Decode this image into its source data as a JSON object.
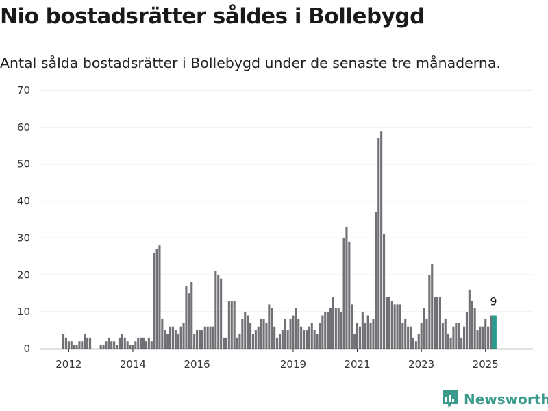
{
  "title": "Nio bostadsrätter såldes i Bollebygd",
  "subtitle": "Antal sålda bostadsrätter i Bollebygd under de senaste tre månaderna.",
  "logo_text": "Newsworthy",
  "colors": {
    "bar": "#707075",
    "highlight": "#2b9a8f",
    "logo": "#3a9a8c",
    "grid": "#dcdcdc"
  },
  "chart_data": {
    "type": "bar",
    "y_ticks": [
      0,
      10,
      20,
      30,
      40,
      50,
      60,
      70
    ],
    "ylim": [
      0,
      70
    ],
    "x_tick_labels": [
      {
        "label": "2012",
        "index": 2
      },
      {
        "label": "2014",
        "index": 26
      },
      {
        "label": "2016",
        "index": 50
      },
      {
        "label": "2019",
        "index": 86
      },
      {
        "label": "2021",
        "index": 110
      },
      {
        "label": "2023",
        "index": 134
      },
      {
        "label": "2025",
        "index": 158
      }
    ],
    "highlight_label": "9",
    "values": [
      4,
      3,
      2,
      2,
      1,
      1,
      2,
      2,
      4,
      3,
      3,
      0,
      0,
      0,
      1,
      1,
      2,
      3,
      2,
      2,
      1,
      3,
      4,
      3,
      2,
      1,
      1,
      2,
      3,
      3,
      3,
      2,
      3,
      2,
      26,
      27,
      28,
      8,
      5,
      4,
      6,
      6,
      5,
      4,
      6,
      7,
      17,
      15,
      18,
      4,
      5,
      5,
      5,
      6,
      6,
      6,
      6,
      21,
      20,
      19,
      3,
      3,
      13,
      13,
      13,
      3,
      4,
      8,
      10,
      9,
      7,
      4,
      5,
      6,
      8,
      8,
      7,
      12,
      11,
      6,
      3,
      4,
      5,
      8,
      5,
      8,
      9,
      11,
      8,
      6,
      5,
      5,
      6,
      7,
      5,
      4,
      7,
      9,
      10,
      10,
      11,
      14,
      11,
      11,
      10,
      30,
      33,
      29,
      12,
      4,
      7,
      6,
      10,
      7,
      9,
      7,
      8,
      37,
      57,
      59,
      31,
      14,
      14,
      13,
      12,
      12,
      12,
      7,
      8,
      6,
      6,
      3,
      2,
      4,
      7,
      11,
      8,
      20,
      23,
      14,
      14,
      14,
      7,
      8,
      4,
      3,
      6,
      7,
      7,
      3,
      6,
      10,
      16,
      13,
      11,
      5,
      6,
      6,
      8,
      6,
      9,
      9
    ]
  }
}
